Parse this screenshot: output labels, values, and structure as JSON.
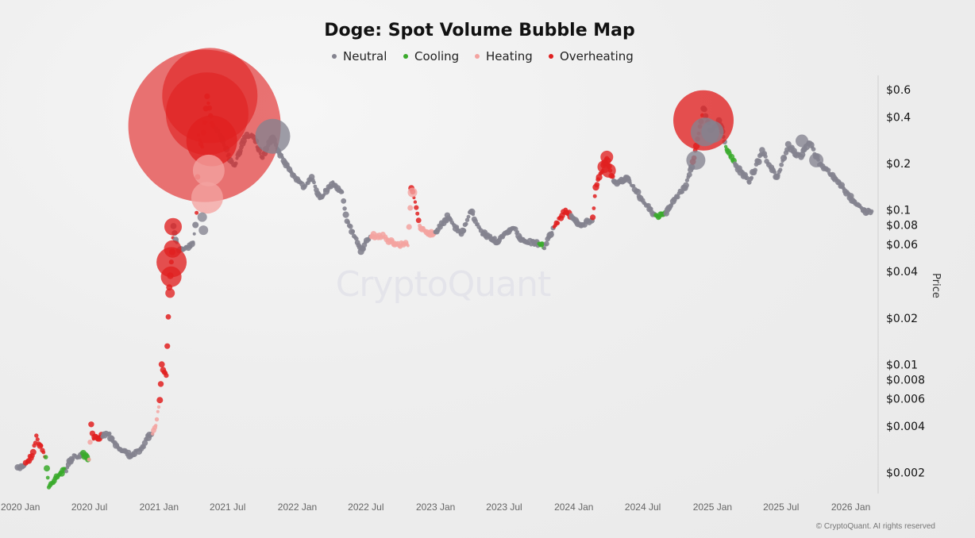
{
  "watermark": "CryptoQuant",
  "copyright": "© CryptoQuant. AI rights reserved",
  "chart_data": {
    "type": "scatter",
    "title": "Doge: Spot Volume Bubble Map",
    "ylabel": "Price",
    "xlabel": "",
    "yscale": "log",
    "ylim": [
      0.0015,
      0.7
    ],
    "xlim": [
      "2019-12-20",
      "2026-03-10"
    ],
    "y_ticks": [
      {
        "value": 0.6,
        "label": "$0.6"
      },
      {
        "value": 0.4,
        "label": "$0.4"
      },
      {
        "value": 0.2,
        "label": "$0.2"
      },
      {
        "value": 0.1,
        "label": "$0.1"
      },
      {
        "value": 0.08,
        "label": "$0.08"
      },
      {
        "value": 0.06,
        "label": "$0.06"
      },
      {
        "value": 0.04,
        "label": "$0.04"
      },
      {
        "value": 0.02,
        "label": "$0.02"
      },
      {
        "value": 0.01,
        "label": "$0.01"
      },
      {
        "value": 0.008,
        "label": "$0.008"
      },
      {
        "value": 0.006,
        "label": "$0.006"
      },
      {
        "value": 0.004,
        "label": "$0.004"
      },
      {
        "value": 0.002,
        "label": "$0.002"
      }
    ],
    "x_ticks": [
      {
        "date": "2020-01-01",
        "label": "2020 Jan"
      },
      {
        "date": "2020-07-01",
        "label": "2020 Jul"
      },
      {
        "date": "2021-01-01",
        "label": "2021 Jan"
      },
      {
        "date": "2021-07-01",
        "label": "2021 Jul"
      },
      {
        "date": "2022-01-01",
        "label": "2022 Jan"
      },
      {
        "date": "2022-07-01",
        "label": "2022 Jul"
      },
      {
        "date": "2023-01-01",
        "label": "2023 Jan"
      },
      {
        "date": "2023-07-01",
        "label": "2023 Jul"
      },
      {
        "date": "2024-01-01",
        "label": "2024 Jan"
      },
      {
        "date": "2024-07-01",
        "label": "2024 Jul"
      },
      {
        "date": "2025-01-01",
        "label": "2025 Jan"
      },
      {
        "date": "2025-07-01",
        "label": "2025 Jul"
      },
      {
        "date": "2026-01-01",
        "label": "2026 Jan"
      }
    ],
    "legend_position": "top-center",
    "legend": [
      {
        "key": "neutral",
        "label": "Neutral",
        "color": "#84838f"
      },
      {
        "key": "cooling",
        "label": "Cooling",
        "color": "#3aaa2c"
      },
      {
        "key": "heating",
        "label": "Heating",
        "color": "#f3a3a0"
      },
      {
        "key": "overheating",
        "label": "Overheating",
        "color": "#e02020"
      }
    ],
    "price_path": [
      [
        "2019-12-25",
        0.0021,
        "neutral"
      ],
      [
        "2020-01-15",
        0.0023,
        "neutral"
      ],
      [
        "2020-02-01",
        0.0026,
        "overheating"
      ],
      [
        "2020-02-12",
        0.0034,
        "overheating"
      ],
      [
        "2020-02-28",
        0.0028,
        "overheating"
      ],
      [
        "2020-03-08",
        0.0025,
        "overheating"
      ],
      [
        "2020-03-16",
        0.0016,
        "cooling"
      ],
      [
        "2020-04-05",
        0.0019,
        "cooling"
      ],
      [
        "2020-05-01",
        0.0021,
        "cooling"
      ],
      [
        "2020-05-15",
        0.0025,
        "neutral"
      ],
      [
        "2020-06-15",
        0.0026,
        "neutral"
      ],
      [
        "2020-06-30",
        0.0024,
        "cooling"
      ],
      [
        "2020-07-06",
        0.004,
        "heating"
      ],
      [
        "2020-07-12",
        0.0033,
        "overheating"
      ],
      [
        "2020-08-05",
        0.0035,
        "overheating"
      ],
      [
        "2020-08-20",
        0.0036,
        "neutral"
      ],
      [
        "2020-09-15",
        0.0029,
        "neutral"
      ],
      [
        "2020-10-15",
        0.0026,
        "neutral"
      ],
      [
        "2020-11-15",
        0.0028,
        "neutral"
      ],
      [
        "2020-12-01",
        0.0034,
        "neutral"
      ],
      [
        "2020-12-15",
        0.0035,
        "neutral"
      ],
      [
        "2020-12-26",
        0.0044,
        "heating"
      ],
      [
        "2021-01-03",
        0.0058,
        "heating"
      ],
      [
        "2021-01-08",
        0.01,
        "overheating"
      ],
      [
        "2021-01-15",
        0.009,
        "overheating"
      ],
      [
        "2021-01-20",
        0.0085,
        "overheating"
      ],
      [
        "2021-01-28",
        0.032,
        "overheating"
      ],
      [
        "2021-02-05",
        0.055,
        "overheating"
      ],
      [
        "2021-02-08",
        0.078,
        "overheating"
      ],
      [
        "2021-02-20",
        0.056,
        "neutral"
      ],
      [
        "2021-03-10",
        0.057,
        "neutral"
      ],
      [
        "2021-04-01",
        0.06,
        "neutral"
      ],
      [
        "2021-04-10",
        0.094,
        "neutral"
      ],
      [
        "2021-04-15",
        0.3,
        "overheating"
      ],
      [
        "2021-04-25",
        0.26,
        "overheating"
      ],
      [
        "2021-05-08",
        0.55,
        "overheating"
      ],
      [
        "2021-05-20",
        0.36,
        "overheating"
      ],
      [
        "2021-06-01",
        0.34,
        "overheating"
      ],
      [
        "2021-06-15",
        0.3,
        "neutral"
      ],
      [
        "2021-07-01",
        0.23,
        "neutral"
      ],
      [
        "2021-07-20",
        0.19,
        "neutral"
      ],
      [
        "2021-08-15",
        0.3,
        "neutral"
      ],
      [
        "2021-09-05",
        0.3,
        "neutral"
      ],
      [
        "2021-10-01",
        0.22,
        "neutral"
      ],
      [
        "2021-10-28",
        0.3,
        "neutral"
      ],
      [
        "2021-11-20",
        0.22,
        "neutral"
      ],
      [
        "2021-12-20",
        0.17,
        "neutral"
      ],
      [
        "2022-01-20",
        0.14,
        "neutral"
      ],
      [
        "2022-02-08",
        0.16,
        "neutral"
      ],
      [
        "2022-03-01",
        0.12,
        "neutral"
      ],
      [
        "2022-04-05",
        0.15,
        "neutral"
      ],
      [
        "2022-04-30",
        0.13,
        "neutral"
      ],
      [
        "2022-05-12",
        0.085,
        "neutral"
      ],
      [
        "2022-06-18",
        0.055,
        "neutral"
      ],
      [
        "2022-07-15",
        0.068,
        "neutral"
      ],
      [
        "2022-08-15",
        0.068,
        "heating"
      ],
      [
        "2022-09-15",
        0.06,
        "heating"
      ],
      [
        "2022-10-20",
        0.06,
        "heating"
      ],
      [
        "2022-10-29",
        0.14,
        "heating"
      ],
      [
        "2022-11-05",
        0.12,
        "overheating"
      ],
      [
        "2022-11-20",
        0.078,
        "overheating"
      ],
      [
        "2022-12-15",
        0.07,
        "heating"
      ],
      [
        "2023-01-01",
        0.072,
        "heating"
      ],
      [
        "2023-02-01",
        0.09,
        "neutral"
      ],
      [
        "2023-03-10",
        0.069,
        "neutral"
      ],
      [
        "2023-04-04",
        0.098,
        "neutral"
      ],
      [
        "2023-05-01",
        0.072,
        "neutral"
      ],
      [
        "2023-06-15",
        0.062,
        "neutral"
      ],
      [
        "2023-07-22",
        0.078,
        "neutral"
      ],
      [
        "2023-08-20",
        0.063,
        "neutral"
      ],
      [
        "2023-10-01",
        0.06,
        "neutral"
      ],
      [
        "2023-10-15",
        0.058,
        "cooling"
      ],
      [
        "2023-11-10",
        0.078,
        "neutral"
      ],
      [
        "2023-12-10",
        0.1,
        "overheating"
      ],
      [
        "2023-12-25",
        0.09,
        "overheating"
      ],
      [
        "2024-01-20",
        0.08,
        "neutral"
      ],
      [
        "2024-02-20",
        0.087,
        "neutral"
      ],
      [
        "2024-02-28",
        0.14,
        "overheating"
      ],
      [
        "2024-03-28",
        0.22,
        "overheating"
      ],
      [
        "2024-04-15",
        0.15,
        "overheating"
      ],
      [
        "2024-05-20",
        0.16,
        "neutral"
      ],
      [
        "2024-06-15",
        0.13,
        "neutral"
      ],
      [
        "2024-07-10",
        0.11,
        "neutral"
      ],
      [
        "2024-08-05",
        0.09,
        "neutral"
      ],
      [
        "2024-09-01",
        0.095,
        "cooling"
      ],
      [
        "2024-09-25",
        0.12,
        "neutral"
      ],
      [
        "2024-10-20",
        0.14,
        "neutral"
      ],
      [
        "2024-11-10",
        0.2,
        "neutral"
      ],
      [
        "2024-12-08",
        0.46,
        "overheating"
      ],
      [
        "2024-12-28",
        0.32,
        "neutral"
      ],
      [
        "2025-01-18",
        0.38,
        "neutral"
      ],
      [
        "2025-02-05",
        0.26,
        "neutral"
      ],
      [
        "2025-03-01",
        0.2,
        "cooling"
      ],
      [
        "2025-04-08",
        0.15,
        "neutral"
      ],
      [
        "2025-05-12",
        0.24,
        "neutral"
      ],
      [
        "2025-06-20",
        0.16,
        "neutral"
      ],
      [
        "2025-07-20",
        0.26,
        "neutral"
      ],
      [
        "2025-08-20",
        0.22,
        "neutral"
      ],
      [
        "2025-09-12",
        0.28,
        "neutral"
      ],
      [
        "2025-10-10",
        0.2,
        "neutral"
      ],
      [
        "2025-11-20",
        0.16,
        "neutral"
      ],
      [
        "2025-12-20",
        0.13,
        "neutral"
      ],
      [
        "2026-02-01",
        0.1,
        "neutral"
      ],
      [
        "2026-02-28",
        0.096,
        "neutral"
      ]
    ],
    "bubbles": [
      {
        "date": "2021-05-01",
        "value": 0.35,
        "size": 96,
        "status": "overheating"
      },
      {
        "date": "2021-05-15",
        "value": 0.55,
        "size": 60,
        "status": "overheating"
      },
      {
        "date": "2021-05-08",
        "value": 0.42,
        "size": 52,
        "status": "overheating"
      },
      {
        "date": "2021-05-20",
        "value": 0.28,
        "size": 32,
        "status": "overheating"
      },
      {
        "date": "2021-05-12",
        "value": 0.18,
        "size": 20,
        "status": "heating"
      },
      {
        "date": "2021-05-08",
        "value": 0.12,
        "size": 20,
        "status": "heating"
      },
      {
        "date": "2021-02-03",
        "value": 0.046,
        "size": 19,
        "status": "overheating"
      },
      {
        "date": "2021-02-02",
        "value": 0.037,
        "size": 13,
        "status": "overheating"
      },
      {
        "date": "2021-02-06",
        "value": 0.056,
        "size": 11,
        "status": "overheating"
      },
      {
        "date": "2021-02-07",
        "value": 0.078,
        "size": 11,
        "status": "overheating"
      },
      {
        "date": "2021-01-30",
        "value": 0.029,
        "size": 6,
        "status": "overheating"
      },
      {
        "date": "2021-10-28",
        "value": 0.3,
        "size": 22,
        "status": "neutral"
      },
      {
        "date": "2024-12-08",
        "value": 0.38,
        "size": 38,
        "status": "overheating"
      },
      {
        "date": "2024-12-12",
        "value": 0.32,
        "size": 18,
        "status": "neutral"
      },
      {
        "date": "2024-11-18",
        "value": 0.21,
        "size": 12,
        "status": "neutral"
      },
      {
        "date": "2025-01-01",
        "value": 0.32,
        "size": 14,
        "status": "neutral"
      },
      {
        "date": "2025-08-25",
        "value": 0.28,
        "size": 8,
        "status": "neutral"
      },
      {
        "date": "2025-10-02",
        "value": 0.21,
        "size": 9,
        "status": "neutral"
      },
      {
        "date": "2024-03-28",
        "value": 0.22,
        "size": 8,
        "status": "overheating"
      },
      {
        "date": "2024-04-02",
        "value": 0.18,
        "size": 9,
        "status": "overheating"
      },
      {
        "date": "2024-03-20",
        "value": 0.19,
        "size": 8,
        "status": "overheating"
      },
      {
        "date": "2022-11-01",
        "value": 0.13,
        "size": 6,
        "status": "heating"
      },
      {
        "date": "2021-04-25",
        "value": 0.09,
        "size": 6,
        "status": "neutral"
      },
      {
        "date": "2021-04-28",
        "value": 0.074,
        "size": 6,
        "status": "neutral"
      }
    ]
  }
}
